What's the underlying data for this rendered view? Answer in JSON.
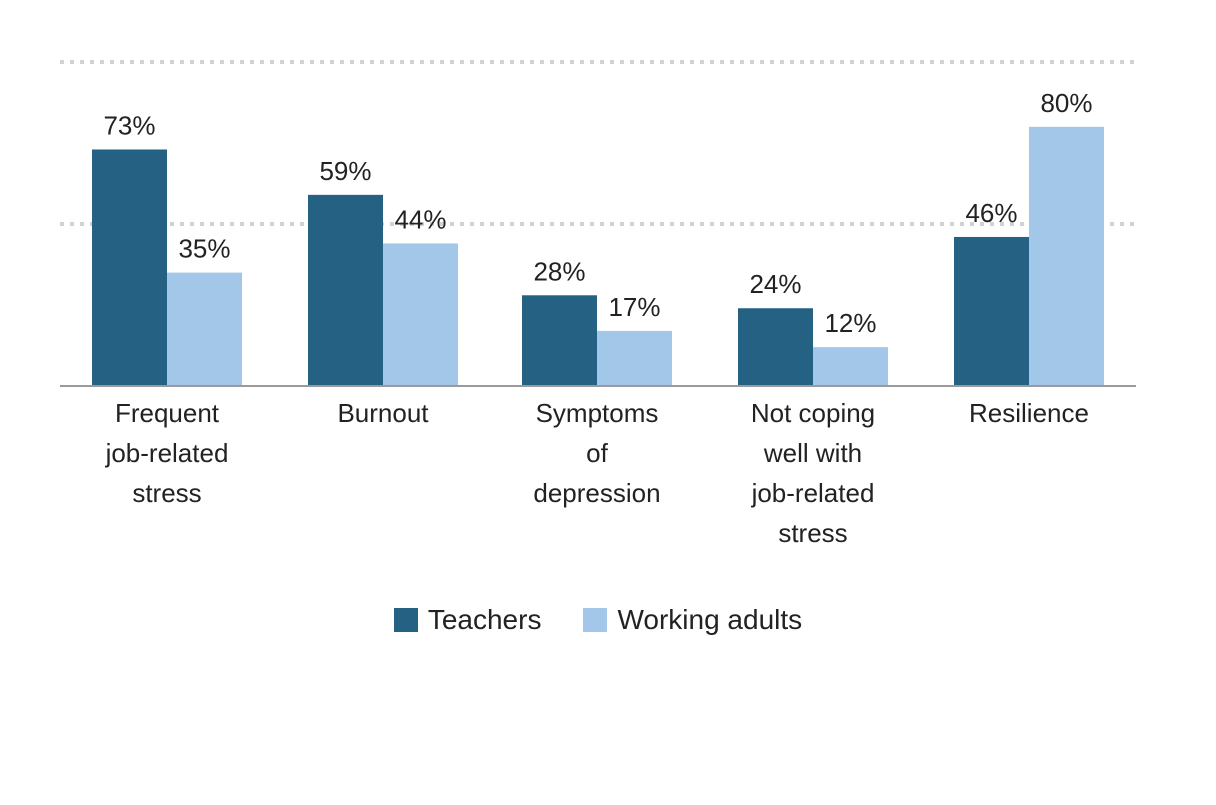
{
  "chart_data": {
    "type": "bar",
    "categories": [
      [
        "Frequent",
        "job-related",
        "stress"
      ],
      [
        "Burnout"
      ],
      [
        "Symptoms",
        "of",
        "depression"
      ],
      [
        "Not coping",
        "well with",
        "job-related",
        "stress"
      ],
      [
        "Resilience"
      ]
    ],
    "series": [
      {
        "name": "Teachers",
        "color": "#256183",
        "values": [
          73,
          59,
          28,
          24,
          46
        ],
        "labels": [
          "73%",
          "59%",
          "28%",
          "24%",
          "46%"
        ]
      },
      {
        "name": "Working adults",
        "color": "#a2c7e8",
        "values": [
          35,
          44,
          17,
          12,
          80
        ],
        "labels": [
          "35%",
          "44%",
          "17%",
          "12%",
          "80%"
        ]
      }
    ],
    "ylim": [
      0,
      100
    ],
    "gridlines": [
      50,
      100
    ],
    "grid": true,
    "legend_position": "bottom-center"
  }
}
